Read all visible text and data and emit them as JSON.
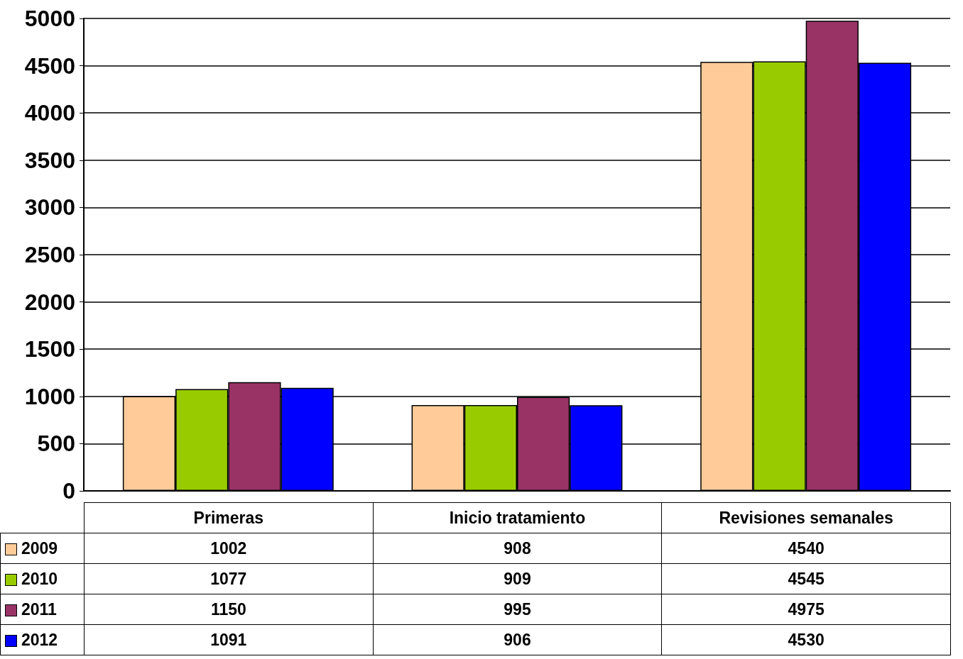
{
  "chart_data": {
    "type": "bar",
    "categories": [
      "Primeras",
      "Inicio tratamiento",
      "Revisiones semanales"
    ],
    "series": [
      {
        "name": "2009",
        "color": "#ffcc99",
        "values": [
          1002,
          908,
          4540
        ]
      },
      {
        "name": "2010",
        "color": "#99cc00",
        "values": [
          1077,
          909,
          4545
        ]
      },
      {
        "name": "2011",
        "color": "#993366",
        "values": [
          1150,
          995,
          4975
        ]
      },
      {
        "name": "2012",
        "color": "#0000ff",
        "values": [
          1091,
          906,
          4530
        ]
      }
    ],
    "ylim": [
      0,
      5000
    ],
    "yticks": [
      0,
      500,
      1000,
      1500,
      2000,
      2500,
      3000,
      3500,
      4000,
      4500,
      5000
    ],
    "grid": "y",
    "legend": "bottom left",
    "data_labels": true
  }
}
